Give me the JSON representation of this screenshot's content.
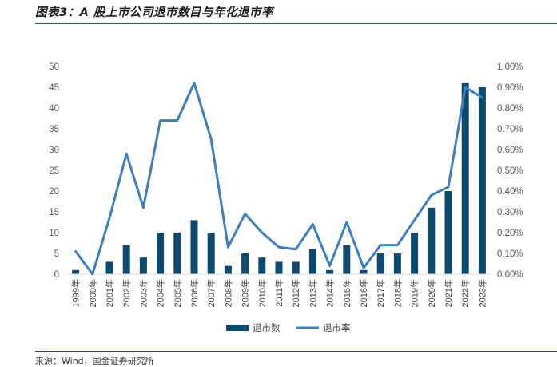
{
  "figure": {
    "title": "图表3：A 股上市公司退市数目与年化退市率",
    "source": "来源：Wind，国金证券研究所"
  },
  "chart_data": {
    "type": "bar",
    "categories": [
      "1999年",
      "2000年",
      "2001年",
      "2002年",
      "2003年",
      "2004年",
      "2005年",
      "2006年",
      "2007年",
      "2008年",
      "2009年",
      "2010年",
      "2011年",
      "2012年",
      "2013年",
      "2014年",
      "2015年",
      "2016年",
      "2017年",
      "2018年",
      "2019年",
      "2020年",
      "2021年",
      "2022年",
      "2023年"
    ],
    "series": [
      {
        "name": "退市数",
        "type": "bar",
        "axis": "left",
        "color": "#0d4a70",
        "values": [
          1,
          0,
          3,
          7,
          4,
          10,
          10,
          13,
          10,
          2,
          5,
          4,
          3,
          3,
          6,
          1,
          7,
          1,
          5,
          5,
          10,
          16,
          20,
          46,
          45
        ]
      },
      {
        "name": "退市率",
        "type": "line",
        "axis": "right",
        "color": "#3c7fc0",
        "values": [
          0.0011,
          0.0,
          0.0027,
          0.0058,
          0.0032,
          0.0074,
          0.0074,
          0.0092,
          0.0065,
          0.0013,
          0.0029,
          0.002,
          0.0013,
          0.0012,
          0.0024,
          0.0004,
          0.0025,
          0.0003,
          0.0014,
          0.0014,
          0.0026,
          0.0038,
          0.0042,
          0.009,
          0.0085
        ]
      }
    ],
    "y_left": {
      "min": 0,
      "max": 50,
      "ticks": [
        "0",
        "5",
        "10",
        "15",
        "20",
        "25",
        "30",
        "35",
        "40",
        "45",
        "50"
      ]
    },
    "y_right": {
      "min": 0,
      "max": 0.01,
      "ticks": [
        "0.00%",
        "0.10%",
        "0.20%",
        "0.30%",
        "0.40%",
        "0.50%",
        "0.60%",
        "0.70%",
        "0.80%",
        "0.90%",
        "1.00%"
      ]
    },
    "grid": false,
    "legend": "bottom-center"
  }
}
